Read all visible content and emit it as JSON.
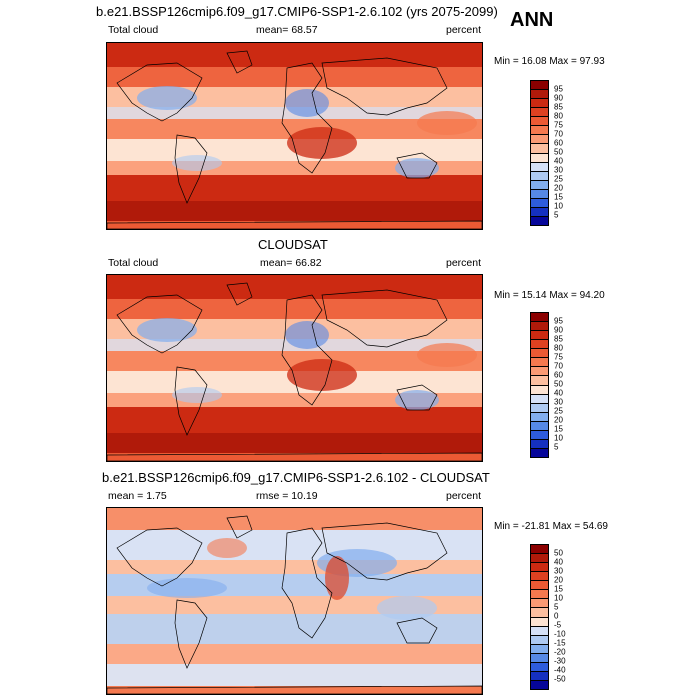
{
  "season": "ANN",
  "panels": [
    {
      "title": "b.e21.BSSP126cmip6.f09_g17.CMIP6-SSP1-2.6.102 (yrs 2075-2099)",
      "left_label": "Total cloud",
      "center_label": "mean=  68.57",
      "right_label": "percent",
      "minmax": "Min =  16.08 Max =  97.93",
      "colorbar_labels": [
        "95",
        "90",
        "85",
        "80",
        "75",
        "70",
        "60",
        "50",
        "40",
        "30",
        "25",
        "20",
        "15",
        "10",
        "5"
      ],
      "colors": [
        "#8b0000",
        "#b01a0a",
        "#cc2a12",
        "#de4121",
        "#ec5a34",
        "#f5794f",
        "#fa9a74",
        "#fcbfa0",
        "#fde4d3",
        "#d5e1f7",
        "#aecaf2",
        "#82aeee",
        "#5689e6",
        "#2e5cdc",
        "#1530c0",
        "#06069a"
      ]
    },
    {
      "title": "CLOUDSAT",
      "left_label": "Total cloud",
      "center_label": "mean=  66.82",
      "right_label": "percent",
      "minmax": "Min =  15.14 Max =  94.20",
      "colorbar_labels": [
        "95",
        "90",
        "85",
        "80",
        "75",
        "70",
        "60",
        "50",
        "40",
        "30",
        "25",
        "20",
        "15",
        "10",
        "5"
      ],
      "colors": [
        "#8b0000",
        "#b01a0a",
        "#cc2a12",
        "#de4121",
        "#ec5a34",
        "#f5794f",
        "#fa9a74",
        "#fcbfa0",
        "#fde4d3",
        "#d5e1f7",
        "#aecaf2",
        "#82aeee",
        "#5689e6",
        "#2e5cdc",
        "#1530c0",
        "#06069a"
      ]
    },
    {
      "title": "b.e21.BSSP126cmip6.f09_g17.CMIP6-SSP1-2.6.102 - CLOUDSAT",
      "left_label": "mean =   1.75",
      "center_label": "rmse =  10.19",
      "right_label": "percent",
      "minmax": "Min = -21.81 Max =  54.69",
      "colorbar_labels": [
        "50",
        "40",
        "30",
        "20",
        "15",
        "10",
        "5",
        "0",
        "-5",
        "-10",
        "-15",
        "-20",
        "-30",
        "-40",
        "-50"
      ],
      "colors": [
        "#8b0000",
        "#b01a0a",
        "#cc2a12",
        "#de4121",
        "#ec5a34",
        "#f5794f",
        "#fa9a74",
        "#fcbfa0",
        "#fde4d3",
        "#d5e1f7",
        "#aecaf2",
        "#82aeee",
        "#5689e6",
        "#2e5cdc",
        "#1530c0",
        "#06069a"
      ]
    }
  ]
}
